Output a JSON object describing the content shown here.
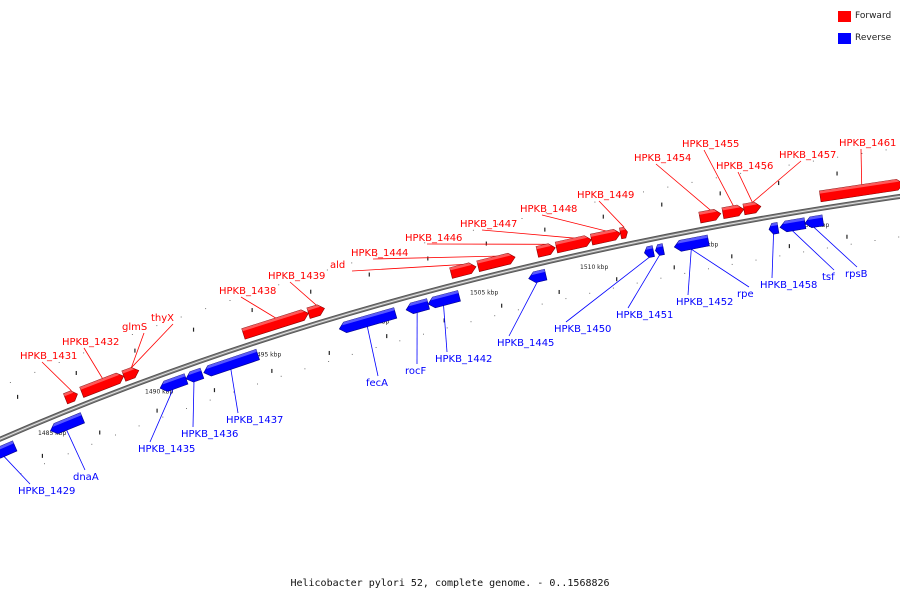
{
  "legend": [
    {
      "label": "Forward",
      "color": "#ff0000"
    },
    {
      "label": "Reverse",
      "color": "#0000ff"
    }
  ],
  "caption": "Helicobacter pylori 52, complete genome. - 0..1568826",
  "colors": {
    "forward": "#ff0000",
    "reverse": "#0000ff",
    "backbone": "#808080",
    "leader": "#000000"
  },
  "scale": {
    "unit": "kbp",
    "ticks": [
      1485,
      1490,
      1495,
      1500,
      1505,
      1510,
      1515,
      1520
    ]
  },
  "genes": [
    {
      "name": "HPKB_1429",
      "strand": "reverse"
    },
    {
      "name": "dnaA",
      "strand": "reverse"
    },
    {
      "name": "HPKB_1431",
      "strand": "forward"
    },
    {
      "name": "HPKB_1432",
      "strand": "forward"
    },
    {
      "name": "glmS",
      "strand": "forward"
    },
    {
      "name": "thyX",
      "strand": "forward"
    },
    {
      "name": "HPKB_1435",
      "strand": "reverse"
    },
    {
      "name": "HPKB_1436",
      "strand": "reverse"
    },
    {
      "name": "HPKB_1437",
      "strand": "reverse"
    },
    {
      "name": "HPKB_1438",
      "strand": "forward"
    },
    {
      "name": "HPKB_1439",
      "strand": "forward"
    },
    {
      "name": "fecA",
      "strand": "reverse"
    },
    {
      "name": "rocF",
      "strand": "reverse"
    },
    {
      "name": "HPKB_1442",
      "strand": "reverse"
    },
    {
      "name": "ald",
      "strand": "forward"
    },
    {
      "name": "HPKB_1444",
      "strand": "forward"
    },
    {
      "name": "HPKB_1445",
      "strand": "reverse"
    },
    {
      "name": "HPKB_1446",
      "strand": "forward"
    },
    {
      "name": "HPKB_1447",
      "strand": "forward"
    },
    {
      "name": "HPKB_1448",
      "strand": "forward"
    },
    {
      "name": "HPKB_1449",
      "strand": "forward"
    },
    {
      "name": "HPKB_1450",
      "strand": "reverse"
    },
    {
      "name": "HPKB_1451",
      "strand": "reverse"
    },
    {
      "name": "HPKB_1452",
      "strand": "reverse"
    },
    {
      "name": "rpe",
      "strand": "reverse"
    },
    {
      "name": "HPKB_1454",
      "strand": "forward"
    },
    {
      "name": "HPKB_1455",
      "strand": "forward"
    },
    {
      "name": "HPKB_1456",
      "strand": "forward"
    },
    {
      "name": "HPKB_1457",
      "strand": "forward"
    },
    {
      "name": "HPKB_1458",
      "strand": "reverse"
    },
    {
      "name": "tsf",
      "strand": "reverse"
    },
    {
      "name": "rpsB",
      "strand": "reverse"
    },
    {
      "name": "HPKB_1461",
      "strand": "forward"
    }
  ]
}
